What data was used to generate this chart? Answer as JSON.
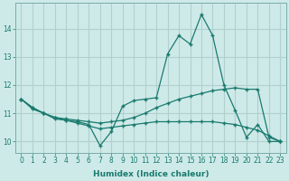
{
  "xlabel": "Humidex (Indice chaleur)",
  "background_color": "#ceeae8",
  "grid_color": "#b0d0ce",
  "line_color": "#1a7a6e",
  "x": [
    0,
    1,
    2,
    3,
    4,
    5,
    6,
    7,
    8,
    9,
    10,
    11,
    12,
    13,
    14,
    15,
    16,
    17,
    18,
    19,
    20,
    21,
    22,
    23
  ],
  "line1_main": [
    11.5,
    11.2,
    11.0,
    10.85,
    10.75,
    10.7,
    10.6,
    9.85,
    10.35,
    11.25,
    11.45,
    11.5,
    11.55,
    13.1,
    13.75,
    13.45,
    14.5,
    13.75,
    12.0,
    11.1,
    10.15,
    10.6,
    10.0,
    10.0
  ],
  "line2_upper": [
    11.5,
    11.2,
    11.0,
    10.85,
    10.8,
    10.75,
    10.7,
    10.65,
    10.7,
    10.75,
    10.85,
    11.0,
    11.2,
    11.35,
    11.5,
    11.6,
    11.7,
    11.8,
    11.85,
    11.9,
    11.85,
    11.85,
    10.15,
    10.0
  ],
  "line3_lower": [
    11.5,
    11.15,
    11.0,
    10.8,
    10.75,
    10.65,
    10.55,
    10.45,
    10.5,
    10.55,
    10.6,
    10.65,
    10.7,
    10.7,
    10.7,
    10.7,
    10.7,
    10.7,
    10.65,
    10.6,
    10.5,
    10.4,
    10.2,
    10.0
  ],
  "ylim": [
    9.6,
    14.9
  ],
  "yticks": [
    10,
    11,
    12,
    13,
    14
  ],
  "xticks": [
    0,
    1,
    2,
    3,
    4,
    5,
    6,
    7,
    8,
    9,
    10,
    11,
    12,
    13,
    14,
    15,
    16,
    17,
    18,
    19,
    20,
    21,
    22,
    23
  ],
  "tick_fontsize": 5.5,
  "axis_fontsize": 6.5
}
